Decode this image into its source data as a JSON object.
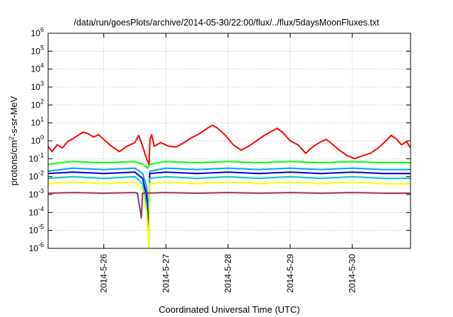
{
  "chart_data": {
    "type": "line",
    "title": "/data/run/goesPlots/archive/2014-05-30/22:00/flux/../flux/5daysMoonFluxes.txt",
    "xlabel": "Coordinated Universal Time (UTC)",
    "ylabel": "protons/cm²-s-sr-MeV",
    "ylabel_parts": {
      "pre": "protons/cm",
      "sup": "2",
      "post": "-s-sr-MeV"
    },
    "y_scale": "log",
    "ylim": [
      1e-06,
      1000000.0
    ],
    "xlim": [
      "2014-05-25T02:30",
      "2014-05-30T22:30"
    ],
    "grid": true,
    "y_ticks": [
      {
        "base": "10",
        "exp": "6"
      },
      {
        "base": "10",
        "exp": "5"
      },
      {
        "base": "10",
        "exp": "4"
      },
      {
        "base": "10",
        "exp": "3"
      },
      {
        "base": "10",
        "exp": "2"
      },
      {
        "base": "10",
        "exp": "1"
      },
      {
        "base": "10",
        "exp": "0"
      },
      {
        "base": "10",
        "exp": "-1"
      },
      {
        "base": "10",
        "exp": "-2"
      },
      {
        "base": "10",
        "exp": "-3"
      },
      {
        "base": "10",
        "exp": "-4"
      },
      {
        "base": "10",
        "exp": "-5"
      },
      {
        "base": "10",
        "exp": "-6"
      }
    ],
    "x_ticks": [
      "2014-5-26",
      "2014-5-27",
      "2014-5-28",
      "2014-5-29",
      "2014-5-30"
    ],
    "series": [
      {
        "color": "#ff0000",
        "points": [
          [
            "2014-05-25T02:30",
            0.5
          ],
          [
            "2014-05-25T04:00",
            0.25
          ],
          [
            "2014-05-25T06:00",
            0.6
          ],
          [
            "2014-05-25T08:00",
            0.4
          ],
          [
            "2014-05-25T10:00",
            0.9
          ],
          [
            "2014-05-25T12:00",
            1.3
          ],
          [
            "2014-05-25T14:00",
            2.0
          ],
          [
            "2014-05-25T16:00",
            3.0
          ],
          [
            "2014-05-25T18:00",
            2.5
          ],
          [
            "2014-05-25T20:00",
            1.6
          ],
          [
            "2014-05-25T22:00",
            2.2
          ],
          [
            "2014-05-26T00:00",
            1.2
          ],
          [
            "2014-05-26T03:00",
            0.5
          ],
          [
            "2014-05-26T06:00",
            0.25
          ],
          [
            "2014-05-26T09:00",
            0.5
          ],
          [
            "2014-05-26T12:00",
            0.8
          ],
          [
            "2014-05-26T13:30",
            2.0
          ],
          [
            "2014-05-26T15:00",
            0.5
          ],
          [
            "2014-05-26T16:30",
            0.1
          ],
          [
            "2014-05-26T17:30",
            0.05
          ],
          [
            "2014-05-26T17:50",
            1.2
          ],
          [
            "2014-05-26T18:30",
            2.2
          ],
          [
            "2014-05-26T19:30",
            0.5
          ],
          [
            "2014-05-26T22:00",
            0.8
          ],
          [
            "2014-05-27T01:00",
            0.5
          ],
          [
            "2014-05-27T04:00",
            0.45
          ],
          [
            "2014-05-27T07:00",
            0.8
          ],
          [
            "2014-05-27T10:00",
            1.5
          ],
          [
            "2014-05-27T13:00",
            2.5
          ],
          [
            "2014-05-27T16:00",
            5.0
          ],
          [
            "2014-05-27T18:00",
            7.5
          ],
          [
            "2014-05-27T20:00",
            5.0
          ],
          [
            "2014-05-27T23:00",
            2.0
          ],
          [
            "2014-05-28T02:00",
            0.6
          ],
          [
            "2014-05-28T05:00",
            0.3
          ],
          [
            "2014-05-28T08:00",
            0.5
          ],
          [
            "2014-05-28T11:00",
            1.0
          ],
          [
            "2014-05-28T14:00",
            2.0
          ],
          [
            "2014-05-28T17:00",
            3.5
          ],
          [
            "2014-05-28T19:00",
            5.0
          ],
          [
            "2014-05-28T21:00",
            3.0
          ],
          [
            "2014-05-29T00:00",
            1.0
          ],
          [
            "2014-05-29T03:00",
            0.6
          ],
          [
            "2014-05-29T06:00",
            0.2
          ],
          [
            "2014-05-29T09:00",
            0.5
          ],
          [
            "2014-05-29T12:00",
            0.9
          ],
          [
            "2014-05-29T14:00",
            1.2
          ],
          [
            "2014-05-29T16:00",
            0.7
          ],
          [
            "2014-05-29T19:00",
            0.3
          ],
          [
            "2014-05-29T22:00",
            0.15
          ],
          [
            "2014-05-30T01:00",
            0.1
          ],
          [
            "2014-05-30T04:00",
            0.15
          ],
          [
            "2014-05-30T07:00",
            0.2
          ],
          [
            "2014-05-30T10:00",
            0.4
          ],
          [
            "2014-05-30T13:00",
            1.0
          ],
          [
            "2014-05-30T15:00",
            2.0
          ],
          [
            "2014-05-30T17:00",
            1.3
          ],
          [
            "2014-05-30T19:00",
            0.6
          ],
          [
            "2014-05-30T21:00",
            0.9
          ],
          [
            "2014-05-30T22:30",
            0.4
          ]
        ]
      },
      {
        "color": "#00ff00",
        "points": [
          [
            "2014-05-25T02:30",
            0.05
          ],
          [
            "2014-05-25T12:00",
            0.07
          ],
          [
            "2014-05-26T00:00",
            0.06
          ],
          [
            "2014-05-26T12:00",
            0.07
          ],
          [
            "2014-05-26T15:00",
            0.05
          ],
          [
            "2014-05-26T17:00",
            0.03
          ],
          [
            "2014-05-26T18:00",
            0.05
          ],
          [
            "2014-05-27T00:00",
            0.07
          ],
          [
            "2014-05-27T12:00",
            0.06
          ],
          [
            "2014-05-28T00:00",
            0.07
          ],
          [
            "2014-05-28T12:00",
            0.06
          ],
          [
            "2014-05-29T00:00",
            0.07
          ],
          [
            "2014-05-29T12:00",
            0.06
          ],
          [
            "2014-05-30T00:00",
            0.07
          ],
          [
            "2014-05-30T12:00",
            0.06
          ],
          [
            "2014-05-30T22:30",
            0.06
          ]
        ]
      },
      {
        "color": "#00a0ff",
        "points": [
          [
            "2014-05-25T02:30",
            0.02
          ],
          [
            "2014-05-25T12:00",
            0.03
          ],
          [
            "2014-05-26T00:00",
            0.025
          ],
          [
            "2014-05-26T12:00",
            0.03
          ],
          [
            "2014-05-26T15:00",
            0.015
          ],
          [
            "2014-05-26T16:30",
            0.003
          ],
          [
            "2014-05-26T17:30",
            0.0001
          ],
          [
            "2014-05-26T17:45",
            0.02
          ],
          [
            "2014-05-27T00:00",
            0.03
          ],
          [
            "2014-05-27T12:00",
            0.025
          ],
          [
            "2014-05-28T00:00",
            0.03
          ],
          [
            "2014-05-28T12:00",
            0.025
          ],
          [
            "2014-05-29T00:00",
            0.03
          ],
          [
            "2014-05-29T12:00",
            0.025
          ],
          [
            "2014-05-30T00:00",
            0.03
          ],
          [
            "2014-05-30T12:00",
            0.025
          ],
          [
            "2014-05-30T22:30",
            0.025
          ]
        ]
      },
      {
        "color": "#0000cc",
        "points": [
          [
            "2014-05-25T02:30",
            0.015
          ],
          [
            "2014-05-25T12:00",
            0.018
          ],
          [
            "2014-05-26T00:00",
            0.015
          ],
          [
            "2014-05-26T12:00",
            0.018
          ],
          [
            "2014-05-26T15:00",
            0.008
          ],
          [
            "2014-05-26T16:30",
            0.001
          ],
          [
            "2014-05-26T17:30",
            1e-05
          ],
          [
            "2014-05-26T17:45",
            0.015
          ],
          [
            "2014-05-27T00:00",
            0.018
          ],
          [
            "2014-05-27T12:00",
            0.015
          ],
          [
            "2014-05-28T00:00",
            0.018
          ],
          [
            "2014-05-28T12:00",
            0.015
          ],
          [
            "2014-05-29T00:00",
            0.018
          ],
          [
            "2014-05-29T12:00",
            0.015
          ],
          [
            "2014-05-30T00:00",
            0.018
          ],
          [
            "2014-05-30T12:00",
            0.015
          ],
          [
            "2014-05-30T22:30",
            0.015
          ]
        ]
      },
      {
        "color": "#00c8c8",
        "points": [
          [
            "2014-05-25T02:30",
            0.008
          ],
          [
            "2014-05-25T12:00",
            0.01
          ],
          [
            "2014-05-26T00:00",
            0.008
          ],
          [
            "2014-05-26T12:00",
            0.01
          ],
          [
            "2014-05-26T15:00",
            0.004
          ],
          [
            "2014-05-26T16:30",
            0.0003
          ],
          [
            "2014-05-26T17:30",
            1e-06
          ],
          [
            "2014-05-26T17:45",
            0.008
          ],
          [
            "2014-05-27T00:00",
            0.01
          ],
          [
            "2014-05-27T12:00",
            0.008
          ],
          [
            "2014-05-28T00:00",
            0.01
          ],
          [
            "2014-05-28T12:00",
            0.008
          ],
          [
            "2014-05-29T00:00",
            0.01
          ],
          [
            "2014-05-29T12:00",
            0.008
          ],
          [
            "2014-05-30T00:00",
            0.01
          ],
          [
            "2014-05-30T12:00",
            0.008
          ],
          [
            "2014-05-30T22:30",
            0.008
          ]
        ]
      },
      {
        "color": "#ffff00",
        "points": [
          [
            "2014-05-25T02:30",
            0.004
          ],
          [
            "2014-05-25T12:00",
            0.005
          ],
          [
            "2014-05-26T00:00",
            0.004
          ],
          [
            "2014-05-26T12:00",
            0.005
          ],
          [
            "2014-05-26T15:00",
            0.002
          ],
          [
            "2014-05-26T16:30",
            0.0001
          ],
          [
            "2014-05-26T17:30",
            1e-06
          ],
          [
            "2014-05-26T17:45",
            0.004
          ],
          [
            "2014-05-27T00:00",
            0.005
          ],
          [
            "2014-05-27T12:00",
            0.004
          ],
          [
            "2014-05-28T00:00",
            0.005
          ],
          [
            "2014-05-28T12:00",
            0.004
          ],
          [
            "2014-05-29T00:00",
            0.005
          ],
          [
            "2014-05-29T12:00",
            0.004
          ],
          [
            "2014-05-30T00:00",
            0.005
          ],
          [
            "2014-05-30T12:00",
            0.004
          ],
          [
            "2014-05-30T22:30",
            0.004
          ]
        ]
      },
      {
        "color": "#993366",
        "points": [
          [
            "2014-05-25T02:30",
            0.0012
          ],
          [
            "2014-05-25T12:00",
            0.0013
          ],
          [
            "2014-05-26T00:00",
            0.0012
          ],
          [
            "2014-05-26T12:00",
            0.0013
          ],
          [
            "2014-05-26T13:00",
            0.0012
          ],
          [
            "2014-05-26T14:30",
            5e-05
          ],
          [
            "2014-05-26T15:00",
            0.0012
          ],
          [
            "2014-05-27T00:00",
            0.0013
          ],
          [
            "2014-05-27T12:00",
            0.0012
          ],
          [
            "2014-05-28T00:00",
            0.0013
          ],
          [
            "2014-05-28T12:00",
            0.0012
          ],
          [
            "2014-05-29T00:00",
            0.0013
          ],
          [
            "2014-05-29T12:00",
            0.0012
          ],
          [
            "2014-05-30T00:00",
            0.0013
          ],
          [
            "2014-05-30T12:00",
            0.0012
          ],
          [
            "2014-05-30T22:30",
            0.0012
          ]
        ]
      }
    ]
  }
}
